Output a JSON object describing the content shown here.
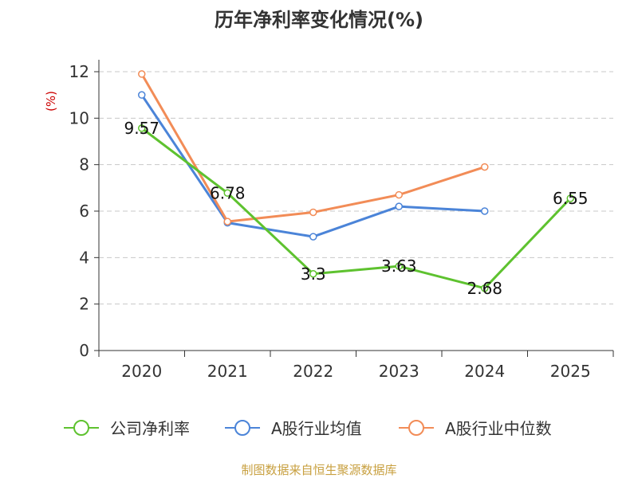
{
  "chart_data": {
    "type": "line",
    "title": "历年净利率变化情况(%)",
    "ylabel": "(%)",
    "xlabel": "",
    "categories": [
      "2020",
      "2021",
      "2022",
      "2023",
      "2024",
      "2025"
    ],
    "ylim": [
      0,
      12
    ],
    "yticks": [
      "0",
      "2",
      "4",
      "6",
      "8",
      "10",
      "12"
    ],
    "grid": true,
    "legend_position": "bottom",
    "series": [
      {
        "name": "公司净利率",
        "color": "#5ec22f",
        "values": [
          9.57,
          6.78,
          3.3,
          3.63,
          2.68,
          6.55
        ],
        "labels": [
          "9.57",
          "6.78",
          "3.3",
          "3.63",
          "2.68",
          "6.55"
        ]
      },
      {
        "name": "A股行业均值",
        "color": "#4b84d8",
        "values": [
          11.0,
          5.5,
          4.9,
          6.2,
          6.0,
          null
        ]
      },
      {
        "name": "A股行业中位数",
        "color": "#f28c57",
        "values": [
          11.9,
          5.55,
          5.95,
          6.7,
          7.9,
          null
        ]
      }
    ],
    "source": "制图数据来自恒生聚源数据库",
    "colors": {
      "axis": "#333333",
      "grid": "#c8c8c8",
      "unit": "#cc0000",
      "source": "#c8a040"
    }
  }
}
